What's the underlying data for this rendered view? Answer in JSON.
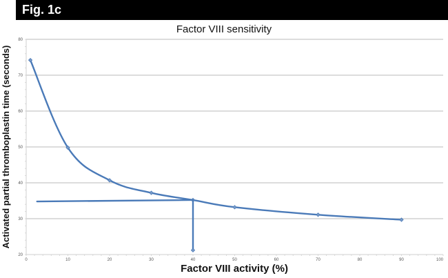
{
  "header": {
    "figure_label": "Fig. 1c"
  },
  "colors": {
    "header_bg": "#000000",
    "header_text": "#ffffff",
    "series": "#4a7ab8",
    "grid": "#c8c8c8"
  },
  "chart_data": {
    "type": "line",
    "title": "Factor VIII sensitivity",
    "xlabel": "Factor VIII activity (%)",
    "ylabel": "Activated partial thromboplastin time (seconds)",
    "xlim": [
      0,
      100
    ],
    "ylim": [
      20,
      80
    ],
    "xticks": [
      0,
      10,
      20,
      30,
      40,
      50,
      60,
      70,
      80,
      90,
      100
    ],
    "yticks": [
      20,
      30,
      40,
      50,
      60,
      70,
      80
    ],
    "grid": "horizontal",
    "legend": "none",
    "series": [
      {
        "name": "Factor VIII sensitivity curve",
        "smooth": true,
        "points": [
          {
            "x": 1,
            "y": 74.2
          },
          {
            "x": 10,
            "y": 49.8
          },
          {
            "x": 20,
            "y": 40.7
          },
          {
            "x": 30,
            "y": 37.2
          },
          {
            "x": 40,
            "y": 35.2
          },
          {
            "x": 50,
            "y": 33.2
          },
          {
            "x": 70,
            "y": 31.1
          },
          {
            "x": 90,
            "y": 29.7
          }
        ]
      },
      {
        "name": "Reference horizontal line",
        "smooth": false,
        "points": [
          {
            "x": 2.6,
            "y": 34.8
          },
          {
            "x": 40,
            "y": 35.2
          }
        ]
      },
      {
        "name": "Reference vertical line",
        "smooth": false,
        "points": [
          {
            "x": 40,
            "y": 35.2
          },
          {
            "x": 40,
            "y": 21.2
          }
        ]
      }
    ]
  }
}
